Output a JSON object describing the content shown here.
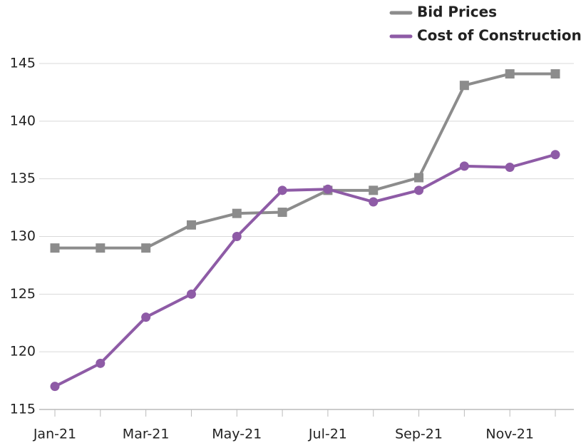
{
  "chart_data": {
    "type": "line",
    "categories": [
      "Jan-21",
      null,
      "Mar-21",
      null,
      "May-21",
      null,
      "Jul-21",
      null,
      "Sep-21",
      null,
      "Nov-21",
      null
    ],
    "series": [
      {
        "name": "Bid Prices",
        "color": "#8c8c8c",
        "marker": "square",
        "values": [
          129,
          129,
          129,
          131,
          132,
          132.1,
          134,
          134,
          135.1,
          143.1,
          144.1,
          144.1
        ]
      },
      {
        "name": "Cost of Construction",
        "color": "#8e5ba6",
        "marker": "circle",
        "values": [
          117,
          119,
          123,
          125,
          130,
          134,
          134.1,
          133,
          134,
          136.1,
          136,
          137.1
        ]
      }
    ],
    "ylim": [
      115,
      145
    ],
    "yticks": [
      115,
      120,
      125,
      130,
      135,
      140,
      145
    ],
    "grid": true,
    "legend": "top-right"
  }
}
